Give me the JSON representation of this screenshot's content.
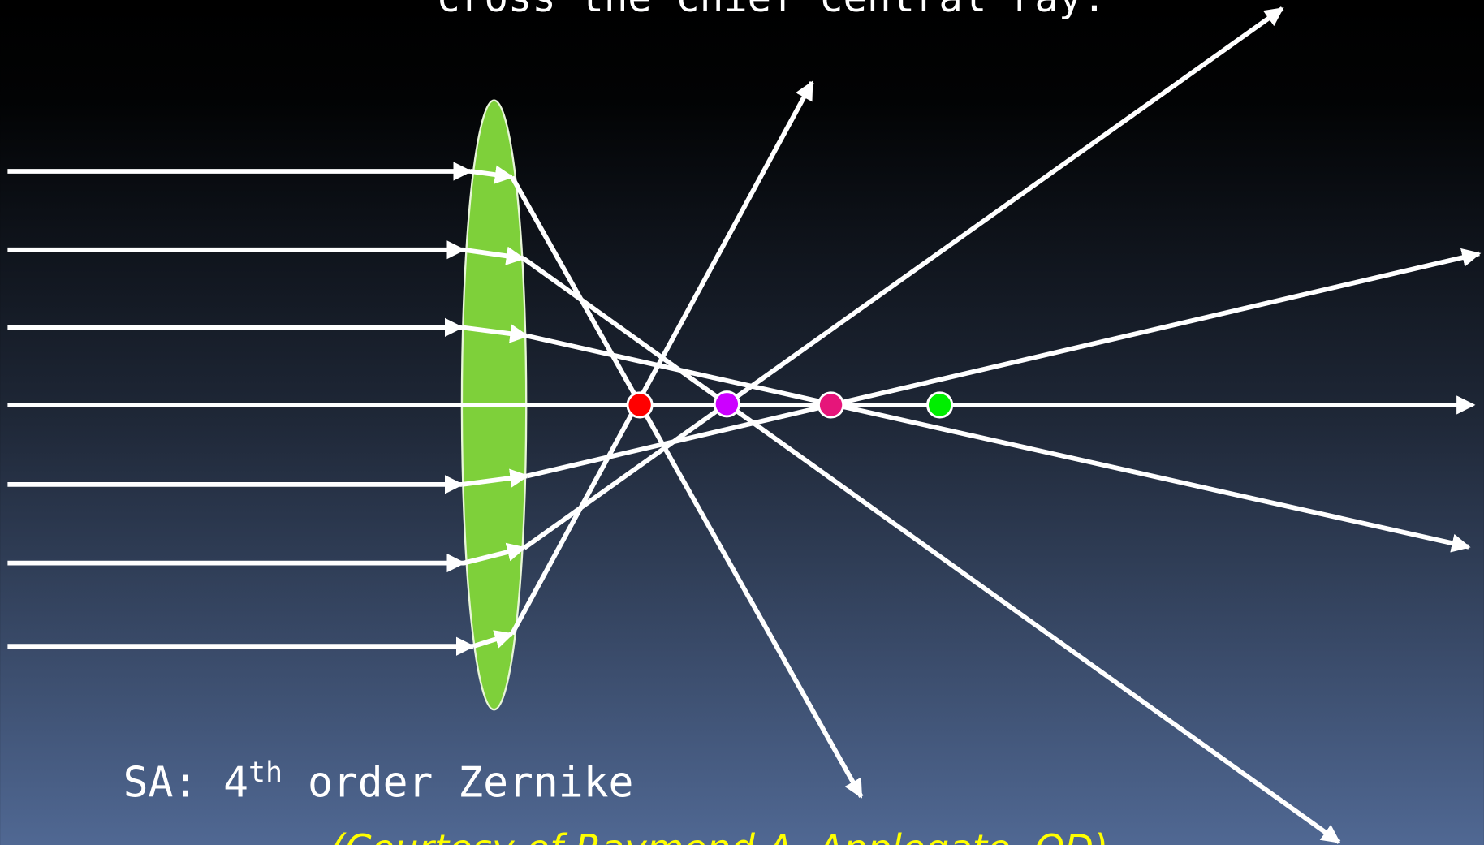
{
  "title": "cross the chief central ray.",
  "caption": {
    "text": "SA: 4",
    "superscript": "th",
    "rest": " order Zernike"
  },
  "credit": "(Courtesy of Raymond A. Applegate, OD)"
}
